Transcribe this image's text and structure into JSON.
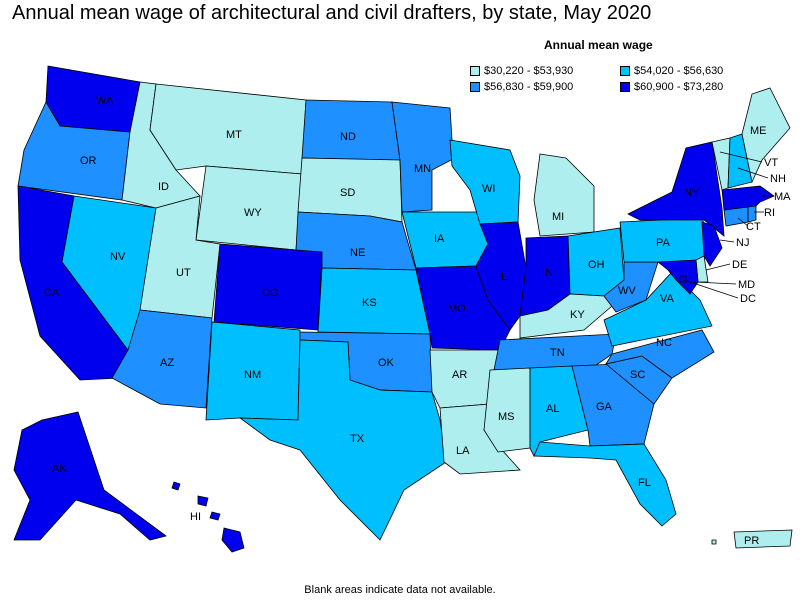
{
  "title": "Annual mean wage of architectural and civil drafters, by state, May 2020",
  "footnote": "Blank areas indicate data not available.",
  "legend": {
    "title": "Annual mean wage",
    "items": [
      {
        "range": "$30,220 - $53,930",
        "color": "#AEEEEE"
      },
      {
        "range": "$54,020 - $56,630",
        "color": "#00BFFF"
      },
      {
        "range": "$56,830 - $59,900",
        "color": "#1E90FF"
      },
      {
        "range": "$60,900 - $73,280",
        "color": "#0000EE"
      }
    ]
  },
  "states": [
    {
      "abbr": "WA",
      "bin": 3
    },
    {
      "abbr": "OR",
      "bin": 2
    },
    {
      "abbr": "CA",
      "bin": 3
    },
    {
      "abbr": "NV",
      "bin": 1
    },
    {
      "abbr": "ID",
      "bin": 0
    },
    {
      "abbr": "MT",
      "bin": 0
    },
    {
      "abbr": "WY",
      "bin": 0
    },
    {
      "abbr": "UT",
      "bin": 0
    },
    {
      "abbr": "AZ",
      "bin": 2
    },
    {
      "abbr": "CO",
      "bin": 3
    },
    {
      "abbr": "NM",
      "bin": 1
    },
    {
      "abbr": "ND",
      "bin": 2
    },
    {
      "abbr": "SD",
      "bin": 0
    },
    {
      "abbr": "NE",
      "bin": 2
    },
    {
      "abbr": "KS",
      "bin": 1
    },
    {
      "abbr": "OK",
      "bin": 2
    },
    {
      "abbr": "TX",
      "bin": 1
    },
    {
      "abbr": "MN",
      "bin": 2
    },
    {
      "abbr": "IA",
      "bin": 1
    },
    {
      "abbr": "MO",
      "bin": 3
    },
    {
      "abbr": "AR",
      "bin": 0
    },
    {
      "abbr": "LA",
      "bin": 0
    },
    {
      "abbr": "WI",
      "bin": 1
    },
    {
      "abbr": "IL",
      "bin": 3
    },
    {
      "abbr": "MI",
      "bin": 0
    },
    {
      "abbr": "IN",
      "bin": 3
    },
    {
      "abbr": "OH",
      "bin": 1
    },
    {
      "abbr": "KY",
      "bin": 0
    },
    {
      "abbr": "TN",
      "bin": 2
    },
    {
      "abbr": "MS",
      "bin": 0
    },
    {
      "abbr": "AL",
      "bin": 1
    },
    {
      "abbr": "GA",
      "bin": 2
    },
    {
      "abbr": "FL",
      "bin": 1
    },
    {
      "abbr": "SC",
      "bin": 2
    },
    {
      "abbr": "NC",
      "bin": 2
    },
    {
      "abbr": "VA",
      "bin": 1
    },
    {
      "abbr": "WV",
      "bin": 2
    },
    {
      "abbr": "PA",
      "bin": 1
    },
    {
      "abbr": "NY",
      "bin": 3
    },
    {
      "abbr": "NJ",
      "bin": 3
    },
    {
      "abbr": "DE",
      "bin": 0
    },
    {
      "abbr": "MD",
      "bin": 3
    },
    {
      "abbr": "DC",
      "bin": 3
    },
    {
      "abbr": "CT",
      "bin": 2
    },
    {
      "abbr": "RI",
      "bin": 2
    },
    {
      "abbr": "MA",
      "bin": 3
    },
    {
      "abbr": "VT",
      "bin": 0
    },
    {
      "abbr": "NH",
      "bin": 1
    },
    {
      "abbr": "ME",
      "bin": 0
    },
    {
      "abbr": "AK",
      "bin": 3
    },
    {
      "abbr": "HI",
      "bin": 3
    },
    {
      "abbr": "PR",
      "bin": 0
    }
  ]
}
